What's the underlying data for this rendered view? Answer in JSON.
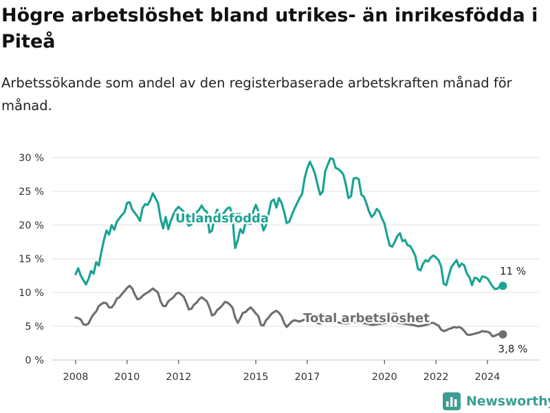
{
  "header": {
    "title": "Högre arbetslöshet bland utrikes- än inrikesfödda i Piteå",
    "subtitle": "Arbetssökande som andel av den registerbaserade arbetskraften månad för månad."
  },
  "brand": {
    "name": "Newsworthy",
    "icon": "bar-chart-logo-icon",
    "color": "#3a9e93"
  },
  "chart_data": {
    "type": "line",
    "x_unit": "year",
    "xlim": [
      2007.5,
      2025.8
    ],
    "ylim": [
      0,
      30
    ],
    "y_ticks": [
      0,
      5,
      10,
      15,
      20,
      25,
      30
    ],
    "y_tick_labels": [
      "0 %",
      "5 %",
      "10 %",
      "15 %",
      "20 %",
      "25 %",
      "30 %"
    ],
    "x_ticks": [
      2008,
      2010,
      2012,
      2015,
      2017,
      2020,
      2022,
      2024
    ],
    "x_tick_labels": [
      "2008",
      "2010",
      "2012",
      "2015",
      "2017",
      "2020",
      "2022",
      "2024"
    ],
    "grid": "horizontal",
    "legend": "inline labels",
    "series": [
      {
        "name": "Utlandsfödda",
        "color": "#1aa393",
        "end_label": "11 %",
        "points": [
          [
            2008.0,
            12.7
          ],
          [
            2008.1,
            13.6
          ],
          [
            2008.2,
            12.5
          ],
          [
            2008.4,
            11.2
          ],
          [
            2008.5,
            12.0
          ],
          [
            2008.6,
            13.2
          ],
          [
            2008.7,
            12.8
          ],
          [
            2008.8,
            14.5
          ],
          [
            2008.9,
            14.0
          ],
          [
            2009.0,
            16.0
          ],
          [
            2009.1,
            17.8
          ],
          [
            2009.2,
            19.2
          ],
          [
            2009.3,
            18.6
          ],
          [
            2009.4,
            20.0
          ],
          [
            2009.5,
            19.3
          ],
          [
            2009.6,
            20.5
          ],
          [
            2009.8,
            21.5
          ],
          [
            2009.9,
            21.9
          ],
          [
            2010.0,
            23.3
          ],
          [
            2010.1,
            23.4
          ],
          [
            2010.2,
            22.3
          ],
          [
            2010.3,
            21.8
          ],
          [
            2010.4,
            21.3
          ],
          [
            2010.5,
            20.6
          ],
          [
            2010.6,
            22.5
          ],
          [
            2010.7,
            23.1
          ],
          [
            2010.8,
            23.0
          ],
          [
            2010.9,
            23.7
          ],
          [
            2011.0,
            24.7
          ],
          [
            2011.1,
            24.0
          ],
          [
            2011.2,
            23.3
          ],
          [
            2011.3,
            21.0
          ],
          [
            2011.4,
            19.5
          ],
          [
            2011.5,
            21.2
          ],
          [
            2011.6,
            19.4
          ],
          [
            2011.7,
            20.6
          ],
          [
            2011.8,
            21.6
          ],
          [
            2011.9,
            22.3
          ],
          [
            2012.0,
            22.7
          ],
          [
            2012.2,
            22.0
          ],
          [
            2012.3,
            20.5
          ],
          [
            2012.4,
            19.9
          ],
          [
            2012.5,
            20.1
          ],
          [
            2012.6,
            21.5
          ],
          [
            2012.8,
            22.3
          ],
          [
            2012.9,
            22.9
          ],
          [
            2013.0,
            22.2
          ],
          [
            2013.1,
            22.0
          ],
          [
            2013.2,
            18.9
          ],
          [
            2013.3,
            19.2
          ],
          [
            2013.4,
            21.2
          ],
          [
            2013.5,
            22.3
          ],
          [
            2013.6,
            21.1
          ],
          [
            2013.8,
            22.0
          ],
          [
            2013.9,
            22.5
          ],
          [
            2014.0,
            22.6
          ],
          [
            2014.1,
            21.2
          ],
          [
            2014.15,
            18.6
          ],
          [
            2014.2,
            16.6
          ],
          [
            2014.3,
            17.8
          ],
          [
            2014.4,
            19.4
          ],
          [
            2014.5,
            18.8
          ],
          [
            2014.6,
            20.3
          ],
          [
            2014.8,
            20.2
          ],
          [
            2014.9,
            22.0
          ],
          [
            2015.0,
            23.0
          ],
          [
            2015.1,
            22.0
          ],
          [
            2015.2,
            20.7
          ],
          [
            2015.3,
            19.2
          ],
          [
            2015.4,
            20.0
          ],
          [
            2015.5,
            21.8
          ],
          [
            2015.6,
            23.5
          ],
          [
            2015.7,
            23.8
          ],
          [
            2015.8,
            22.6
          ],
          [
            2015.9,
            24.0
          ],
          [
            2016.0,
            23.3
          ],
          [
            2016.1,
            22.0
          ],
          [
            2016.2,
            20.3
          ],
          [
            2016.3,
            20.5
          ],
          [
            2016.4,
            21.5
          ],
          [
            2016.5,
            22.4
          ],
          [
            2016.6,
            23.2
          ],
          [
            2016.7,
            24.0
          ],
          [
            2016.8,
            24.6
          ],
          [
            2016.9,
            27.0
          ],
          [
            2017.0,
            28.4
          ],
          [
            2017.1,
            29.4
          ],
          [
            2017.2,
            28.6
          ],
          [
            2017.3,
            27.6
          ],
          [
            2017.4,
            26.0
          ],
          [
            2017.5,
            24.5
          ],
          [
            2017.6,
            25.0
          ],
          [
            2017.7,
            28.0
          ],
          [
            2017.8,
            29.0
          ],
          [
            2017.9,
            29.9
          ],
          [
            2018.0,
            29.8
          ],
          [
            2018.1,
            28.5
          ],
          [
            2018.2,
            28.3
          ],
          [
            2018.3,
            28.0
          ],
          [
            2018.4,
            27.5
          ],
          [
            2018.5,
            26.0
          ],
          [
            2018.6,
            24.0
          ],
          [
            2018.7,
            24.3
          ],
          [
            2018.8,
            26.9
          ],
          [
            2018.9,
            27.0
          ],
          [
            2019.0,
            26.8
          ],
          [
            2019.1,
            24.5
          ],
          [
            2019.2,
            24.2
          ],
          [
            2019.3,
            23.2
          ],
          [
            2019.4,
            22.0
          ],
          [
            2019.5,
            21.2
          ],
          [
            2019.6,
            21.6
          ],
          [
            2019.7,
            22.4
          ],
          [
            2019.8,
            22.0
          ],
          [
            2019.9,
            21.0
          ],
          [
            2020.0,
            20.2
          ],
          [
            2020.1,
            18.5
          ],
          [
            2020.2,
            17.0
          ],
          [
            2020.3,
            16.8
          ],
          [
            2020.4,
            17.5
          ],
          [
            2020.5,
            18.4
          ],
          [
            2020.6,
            18.8
          ],
          [
            2020.7,
            17.6
          ],
          [
            2020.8,
            17.8
          ],
          [
            2020.9,
            17.0
          ],
          [
            2021.0,
            16.9
          ],
          [
            2021.1,
            16.2
          ],
          [
            2021.2,
            15.4
          ],
          [
            2021.3,
            13.5
          ],
          [
            2021.4,
            13.3
          ],
          [
            2021.5,
            14.3
          ],
          [
            2021.6,
            14.8
          ],
          [
            2021.7,
            14.6
          ],
          [
            2021.8,
            15.2
          ],
          [
            2021.9,
            15.5
          ],
          [
            2022.0,
            15.2
          ],
          [
            2022.1,
            14.8
          ],
          [
            2022.2,
            13.9
          ],
          [
            2022.3,
            11.3
          ],
          [
            2022.4,
            11.1
          ],
          [
            2022.5,
            12.5
          ],
          [
            2022.6,
            13.8
          ],
          [
            2022.7,
            14.3
          ],
          [
            2022.8,
            14.8
          ],
          [
            2022.9,
            13.8
          ],
          [
            2023.0,
            14.3
          ],
          [
            2023.1,
            14.0
          ],
          [
            2023.2,
            12.8
          ],
          [
            2023.3,
            12.3
          ],
          [
            2023.4,
            11.1
          ],
          [
            2023.5,
            12.2
          ],
          [
            2023.6,
            12.1
          ],
          [
            2023.7,
            11.6
          ],
          [
            2023.8,
            12.4
          ],
          [
            2023.9,
            12.3
          ],
          [
            2024.0,
            12.1
          ],
          [
            2024.1,
            11.5
          ],
          [
            2024.2,
            10.9
          ],
          [
            2024.3,
            10.5
          ],
          [
            2024.4,
            10.6
          ],
          [
            2024.5,
            11.0
          ],
          [
            2024.6,
            11.0
          ]
        ]
      },
      {
        "name": "Total arbetslöshet",
        "color": "#6e6e72",
        "end_label": "3,8 %",
        "points": [
          [
            2008.0,
            6.3
          ],
          [
            2008.1,
            6.2
          ],
          [
            2008.2,
            6.0
          ],
          [
            2008.3,
            5.3
          ],
          [
            2008.4,
            5.2
          ],
          [
            2008.5,
            5.4
          ],
          [
            2008.6,
            6.2
          ],
          [
            2008.7,
            6.8
          ],
          [
            2008.8,
            7.2
          ],
          [
            2008.9,
            8.0
          ],
          [
            2009.0,
            8.3
          ],
          [
            2009.1,
            8.5
          ],
          [
            2009.2,
            8.4
          ],
          [
            2009.3,
            7.8
          ],
          [
            2009.4,
            7.8
          ],
          [
            2009.5,
            8.3
          ],
          [
            2009.6,
            9.1
          ],
          [
            2009.7,
            9.3
          ],
          [
            2009.8,
            9.8
          ],
          [
            2009.9,
            10.2
          ],
          [
            2010.0,
            10.7
          ],
          [
            2010.1,
            11.0
          ],
          [
            2010.2,
            10.6
          ],
          [
            2010.3,
            9.7
          ],
          [
            2010.4,
            9.0
          ],
          [
            2010.5,
            9.1
          ],
          [
            2010.6,
            9.5
          ],
          [
            2010.7,
            9.8
          ],
          [
            2010.8,
            10.0
          ],
          [
            2010.9,
            10.3
          ],
          [
            2011.0,
            10.6
          ],
          [
            2011.1,
            10.3
          ],
          [
            2011.2,
            10.0
          ],
          [
            2011.3,
            8.7
          ],
          [
            2011.4,
            8.0
          ],
          [
            2011.5,
            8.0
          ],
          [
            2011.6,
            8.7
          ],
          [
            2011.7,
            9.0
          ],
          [
            2011.8,
            9.3
          ],
          [
            2011.9,
            9.8
          ],
          [
            2012.0,
            10.0
          ],
          [
            2012.1,
            9.7
          ],
          [
            2012.2,
            9.4
          ],
          [
            2012.3,
            8.5
          ],
          [
            2012.4,
            7.5
          ],
          [
            2012.5,
            7.6
          ],
          [
            2012.6,
            8.2
          ],
          [
            2012.7,
            8.5
          ],
          [
            2012.8,
            9.0
          ],
          [
            2012.9,
            9.3
          ],
          [
            2013.0,
            9.0
          ],
          [
            2013.1,
            8.7
          ],
          [
            2013.2,
            7.8
          ],
          [
            2013.3,
            6.6
          ],
          [
            2013.4,
            6.8
          ],
          [
            2013.5,
            7.4
          ],
          [
            2013.6,
            7.7
          ],
          [
            2013.7,
            8.1
          ],
          [
            2013.8,
            8.6
          ],
          [
            2013.9,
            8.5
          ],
          [
            2014.0,
            8.2
          ],
          [
            2014.1,
            7.7
          ],
          [
            2014.2,
            6.3
          ],
          [
            2014.3,
            5.5
          ],
          [
            2014.4,
            6.2
          ],
          [
            2014.5,
            7.0
          ],
          [
            2014.6,
            7.1
          ],
          [
            2014.7,
            7.5
          ],
          [
            2014.8,
            7.8
          ],
          [
            2014.9,
            7.4
          ],
          [
            2015.0,
            6.9
          ],
          [
            2015.1,
            6.5
          ],
          [
            2015.2,
            5.2
          ],
          [
            2015.3,
            5.1
          ],
          [
            2015.4,
            5.9
          ],
          [
            2015.5,
            6.3
          ],
          [
            2015.6,
            6.8
          ],
          [
            2015.7,
            7.1
          ],
          [
            2015.8,
            7.3
          ],
          [
            2015.9,
            7.0
          ],
          [
            2016.0,
            6.5
          ],
          [
            2016.1,
            5.5
          ],
          [
            2016.2,
            4.9
          ],
          [
            2016.3,
            5.3
          ],
          [
            2016.4,
            5.7
          ],
          [
            2016.5,
            5.9
          ],
          [
            2016.7,
            5.7
          ],
          [
            2016.9,
            6.0
          ],
          [
            2017.1,
            5.7
          ],
          [
            2017.3,
            5.5
          ],
          [
            2017.5,
            5.4
          ],
          [
            2017.7,
            5.6
          ],
          [
            2017.9,
            5.7
          ],
          [
            2018.1,
            5.6
          ],
          [
            2018.3,
            5.5
          ],
          [
            2018.5,
            5.4
          ],
          [
            2018.7,
            5.5
          ],
          [
            2018.9,
            5.6
          ],
          [
            2019.1,
            5.5
          ],
          [
            2019.3,
            5.4
          ],
          [
            2019.5,
            5.2
          ],
          [
            2019.7,
            5.3
          ],
          [
            2019.9,
            5.4
          ],
          [
            2020.1,
            5.5
          ],
          [
            2020.3,
            5.6
          ],
          [
            2020.5,
            5.5
          ],
          [
            2020.7,
            5.4
          ],
          [
            2020.9,
            5.3
          ],
          [
            2021.1,
            5.2
          ],
          [
            2021.3,
            5.0
          ],
          [
            2021.5,
            5.1
          ],
          [
            2021.7,
            5.3
          ],
          [
            2021.8,
            5.5
          ],
          [
            2021.9,
            5.5
          ],
          [
            2022.0,
            5.3
          ],
          [
            2022.1,
            5.1
          ],
          [
            2022.2,
            4.5
          ],
          [
            2022.3,
            4.3
          ],
          [
            2022.4,
            4.4
          ],
          [
            2022.5,
            4.6
          ],
          [
            2022.6,
            4.7
          ],
          [
            2022.7,
            4.9
          ],
          [
            2022.8,
            4.8
          ],
          [
            2022.9,
            4.9
          ],
          [
            2023.0,
            4.7
          ],
          [
            2023.1,
            4.3
          ],
          [
            2023.2,
            3.8
          ],
          [
            2023.3,
            3.7
          ],
          [
            2023.5,
            3.9
          ],
          [
            2023.7,
            4.1
          ],
          [
            2023.8,
            4.3
          ],
          [
            2023.9,
            4.2
          ],
          [
            2024.0,
            4.2
          ],
          [
            2024.1,
            4.0
          ],
          [
            2024.2,
            3.5
          ],
          [
            2024.3,
            3.6
          ],
          [
            2024.4,
            3.8
          ],
          [
            2024.5,
            3.9
          ],
          [
            2024.6,
            3.8
          ]
        ]
      }
    ]
  }
}
